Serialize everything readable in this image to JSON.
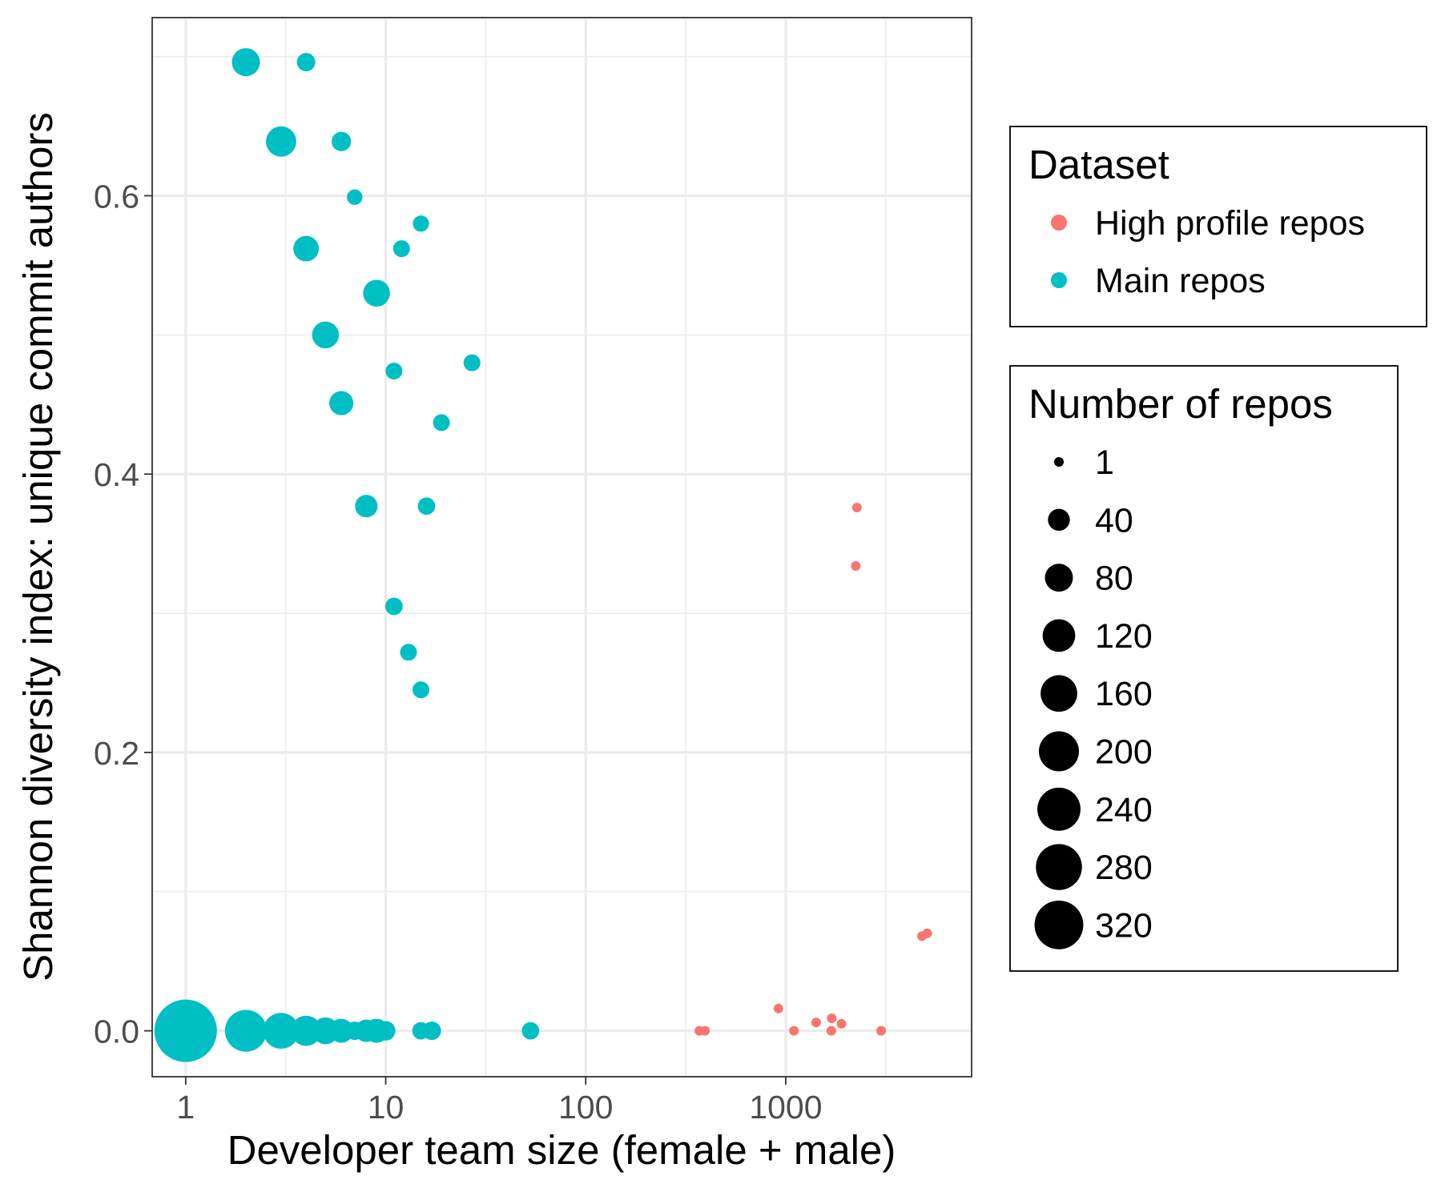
{
  "chart_data": {
    "type": "scatter",
    "title": "",
    "xlabel": "Developer team size (female + male)",
    "ylabel": "Shannon diversity index: unique commit authors",
    "x_scale": "log10",
    "xlim": [
      0.68,
      8500
    ],
    "ylim": [
      -0.033,
      0.728
    ],
    "x_ticks": [
      1,
      10,
      100,
      1000
    ],
    "x_tick_labels": [
      "1",
      "10",
      "100",
      "1000"
    ],
    "y_ticks": [
      0.0,
      0.2,
      0.4,
      0.6
    ],
    "y_tick_labels": [
      "0.0",
      "0.2",
      "0.4",
      "0.6"
    ],
    "grid": true,
    "legend_color": {
      "title": "Dataset",
      "position": "right",
      "entries": [
        {
          "label": "High profile repos",
          "color": "#F8766D"
        },
        {
          "label": "Main repos",
          "color": "#00BFC4"
        }
      ]
    },
    "legend_size": {
      "title": "Number of repos",
      "position": "right",
      "entries": [
        {
          "label": "1",
          "value": 1
        },
        {
          "label": "40",
          "value": 40
        },
        {
          "label": "80",
          "value": 80
        },
        {
          "label": "120",
          "value": 120
        },
        {
          "label": "160",
          "value": 160
        },
        {
          "label": "200",
          "value": 200
        },
        {
          "label": "240",
          "value": 240
        },
        {
          "label": "280",
          "value": 280
        },
        {
          "label": "320",
          "value": 320
        }
      ]
    },
    "series": [
      {
        "name": "Main repos",
        "color": "#00BFC4",
        "points": [
          {
            "x": 2,
            "y": 0.696,
            "n": 40
          },
          {
            "x": 4,
            "y": 0.696,
            "n": 10
          },
          {
            "x": 3,
            "y": 0.639,
            "n": 50
          },
          {
            "x": 6,
            "y": 0.639,
            "n": 12
          },
          {
            "x": 7,
            "y": 0.599,
            "n": 5
          },
          {
            "x": 15,
            "y": 0.58,
            "n": 6
          },
          {
            "x": 4,
            "y": 0.562,
            "n": 30
          },
          {
            "x": 12,
            "y": 0.562,
            "n": 7
          },
          {
            "x": 9,
            "y": 0.53,
            "n": 35
          },
          {
            "x": 5,
            "y": 0.5,
            "n": 35
          },
          {
            "x": 11,
            "y": 0.474,
            "n": 7
          },
          {
            "x": 27,
            "y": 0.48,
            "n": 7
          },
          {
            "x": 6,
            "y": 0.451,
            "n": 25
          },
          {
            "x": 19,
            "y": 0.437,
            "n": 7
          },
          {
            "x": 8,
            "y": 0.377,
            "n": 20
          },
          {
            "x": 16,
            "y": 0.377,
            "n": 8
          },
          {
            "x": 11,
            "y": 0.305,
            "n": 8
          },
          {
            "x": 13,
            "y": 0.272,
            "n": 7
          },
          {
            "x": 15,
            "y": 0.245,
            "n": 7
          },
          {
            "x": 1,
            "y": 0.0,
            "n": 320
          },
          {
            "x": 2,
            "y": 0.0,
            "n": 120
          },
          {
            "x": 3,
            "y": 0.0,
            "n": 80
          },
          {
            "x": 4,
            "y": 0.0,
            "n": 50
          },
          {
            "x": 5,
            "y": 0.0,
            "n": 35
          },
          {
            "x": 6,
            "y": 0.0,
            "n": 25
          },
          {
            "x": 7,
            "y": 0.0,
            "n": 10
          },
          {
            "x": 8,
            "y": 0.0,
            "n": 20
          },
          {
            "x": 9,
            "y": 0.0,
            "n": 25
          },
          {
            "x": 10,
            "y": 0.0,
            "n": 12
          },
          {
            "x": 15,
            "y": 0.0,
            "n": 8
          },
          {
            "x": 17,
            "y": 0.0,
            "n": 10
          },
          {
            "x": 53,
            "y": 0.0,
            "n": 8
          }
        ]
      },
      {
        "name": "High profile repos",
        "color": "#F8766D",
        "points": [
          {
            "x": 2270,
            "y": 0.376,
            "n": 1
          },
          {
            "x": 2240,
            "y": 0.334,
            "n": 1
          },
          {
            "x": 4800,
            "y": 0.068,
            "n": 1
          },
          {
            "x": 5100,
            "y": 0.07,
            "n": 1
          },
          {
            "x": 920,
            "y": 0.016,
            "n": 1
          },
          {
            "x": 1700,
            "y": 0.009,
            "n": 1
          },
          {
            "x": 1420,
            "y": 0.006,
            "n": 1
          },
          {
            "x": 1900,
            "y": 0.005,
            "n": 1
          },
          {
            "x": 370,
            "y": 0.0,
            "n": 1
          },
          {
            "x": 395,
            "y": 0.0,
            "n": 1
          },
          {
            "x": 1100,
            "y": 0.0,
            "n": 1
          },
          {
            "x": 1690,
            "y": 0.0,
            "n": 1
          },
          {
            "x": 3000,
            "y": 0.0,
            "n": 1
          }
        ]
      }
    ]
  }
}
